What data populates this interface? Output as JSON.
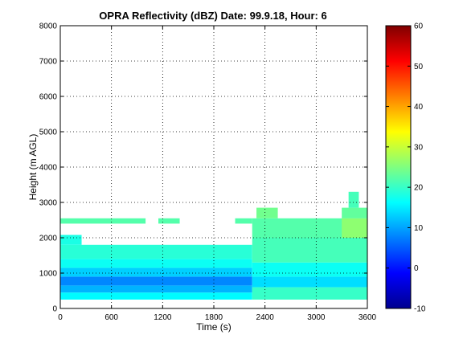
{
  "chart_data": {
    "type": "heatmap",
    "title": "OPRA Reflectivity (dBZ)  Date: 99.9.18, Hour: 6",
    "xlabel": "Time (s)",
    "ylabel": "Height (m AGL)",
    "xlim": [
      0,
      3600
    ],
    "ylim": [
      0,
      8000
    ],
    "xticks": [
      "0",
      "600",
      "1200",
      "1800",
      "2400",
      "3000",
      "3600"
    ],
    "yticks": [
      "0",
      "1000",
      "2000",
      "3000",
      "4000",
      "5000",
      "6000",
      "7000",
      "8000"
    ],
    "grid": true,
    "colorbar": {
      "range": [
        -10,
        60
      ],
      "ticks": [
        "-10",
        "0",
        "10",
        "20",
        "30",
        "40",
        "50",
        "60"
      ]
    },
    "regions": [
      {
        "x0": 0,
        "x1": 2250,
        "y0": 250,
        "y1": 450,
        "value": 16
      },
      {
        "x0": 0,
        "x1": 2250,
        "y0": 450,
        "y1": 650,
        "value": 11
      },
      {
        "x0": 0,
        "x1": 2250,
        "y0": 650,
        "y1": 900,
        "value": 8
      },
      {
        "x0": 0,
        "x1": 2250,
        "y0": 900,
        "y1": 1150,
        "value": 13
      },
      {
        "x0": 0,
        "x1": 2250,
        "y0": 1150,
        "y1": 1400,
        "value": 17
      },
      {
        "x0": 0,
        "x1": 2250,
        "y0": 1400,
        "y1": 1800,
        "value": 19
      },
      {
        "x0": 0,
        "x1": 250,
        "y0": 1800,
        "y1": 2080,
        "value": 18
      },
      {
        "x0": 0,
        "x1": 1000,
        "y0": 2400,
        "y1": 2550,
        "value": 22
      },
      {
        "x0": 1150,
        "x1": 1400,
        "y0": 2400,
        "y1": 2550,
        "value": 22
      },
      {
        "x0": 2050,
        "x1": 2250,
        "y0": 2400,
        "y1": 2550,
        "value": 22
      },
      {
        "x0": 2250,
        "x1": 3600,
        "y0": 250,
        "y1": 600,
        "value": 20
      },
      {
        "x0": 2250,
        "x1": 3600,
        "y0": 600,
        "y1": 900,
        "value": 14
      },
      {
        "x0": 2250,
        "x1": 3600,
        "y0": 900,
        "y1": 1300,
        "value": 17
      },
      {
        "x0": 2250,
        "x1": 3600,
        "y0": 1300,
        "y1": 2000,
        "value": 21
      },
      {
        "x0": 2250,
        "x1": 3600,
        "y0": 2000,
        "y1": 2550,
        "value": 22
      },
      {
        "x0": 2300,
        "x1": 2550,
        "y0": 2550,
        "y1": 2850,
        "value": 24
      },
      {
        "x0": 3300,
        "x1": 3600,
        "y0": 2000,
        "y1": 2550,
        "value": 26
      },
      {
        "x0": 3300,
        "x1": 3600,
        "y0": 2550,
        "y1": 2850,
        "value": 23
      },
      {
        "x0": 3380,
        "x1": 3500,
        "y0": 2850,
        "y1": 3300,
        "value": 21
      }
    ]
  }
}
